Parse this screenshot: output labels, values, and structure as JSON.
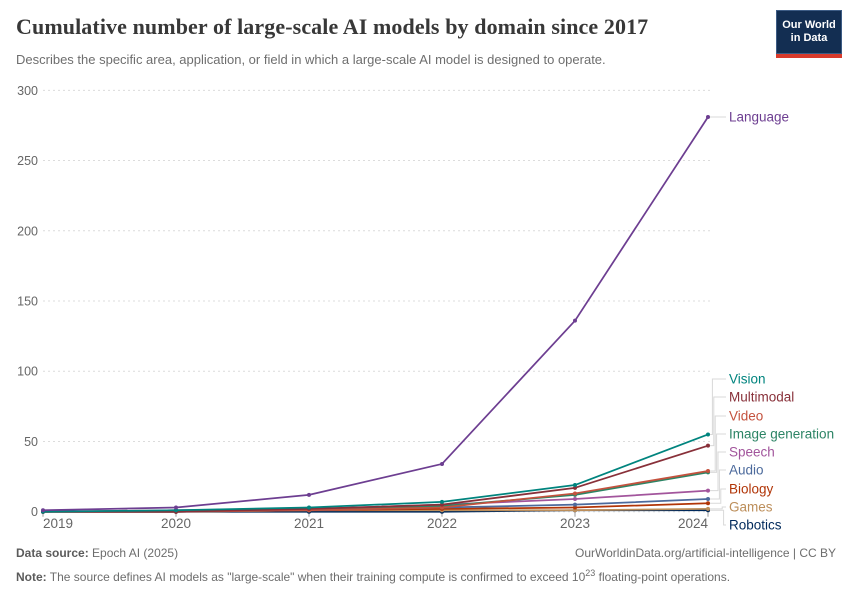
{
  "header": {
    "title": "Cumulative number of large-scale AI models by domain since 2017",
    "subtitle": "Describes the specific area, application, or field in which a large-scale AI model is designed to operate.",
    "logo": {
      "line1": "Our World",
      "line2": "in Data",
      "bg": "#132E52",
      "accent": "#D93A2B"
    }
  },
  "chart_data": {
    "type": "line",
    "x": [
      2019,
      2020,
      2021,
      2022,
      2023,
      2024
    ],
    "x_tick_labels": [
      "2019",
      "2020",
      "2021",
      "2022",
      "2023",
      "2024"
    ],
    "yticks": [
      0,
      50,
      100,
      150,
      200,
      250,
      300
    ],
    "ylim": [
      0,
      300
    ],
    "xlabel": "",
    "ylabel": "",
    "grid": "horizontal-dashed",
    "legend_position": "right-of-line-ends",
    "series": [
      {
        "name": "Language",
        "color": "#6D3E91",
        "values": [
          1,
          3,
          12,
          34,
          136,
          281
        ]
      },
      {
        "name": "Vision",
        "color": "#00847E",
        "values": [
          0,
          1,
          3,
          7,
          19,
          55
        ]
      },
      {
        "name": "Multimodal",
        "color": "#883039",
        "values": [
          0,
          0,
          2,
          5,
          17,
          47
        ]
      },
      {
        "name": "Video",
        "color": "#C4523E",
        "values": [
          0,
          0,
          1,
          3,
          13,
          29
        ]
      },
      {
        "name": "Image generation",
        "color": "#2C8465",
        "values": [
          0,
          0,
          1,
          4,
          12,
          28
        ]
      },
      {
        "name": "Speech",
        "color": "#A2559C",
        "values": [
          0,
          1,
          2,
          5,
          9,
          15
        ]
      },
      {
        "name": "Audio",
        "color": "#4C6A9C",
        "values": [
          0,
          0,
          1,
          3,
          5,
          9
        ]
      },
      {
        "name": "Biology",
        "color": "#B13507",
        "values": [
          0,
          0,
          1,
          2,
          3,
          6
        ]
      },
      {
        "name": "Games",
        "color": "#BC8E5A",
        "values": [
          0,
          1,
          1,
          1,
          1,
          2
        ]
      },
      {
        "name": "Robotics",
        "color": "#00295B",
        "values": [
          0,
          0,
          0,
          0,
          1,
          1
        ]
      }
    ]
  },
  "footer": {
    "source_label": "Data source:",
    "source_text": " Epoch AI (2025)",
    "rights": "OurWorldinData.org/artificial-intelligence | CC BY",
    "note_label": "Note:",
    "note_text_1": " The source defines AI models as \"large-scale\" when their training compute is confirmed to exceed 10",
    "note_sup": "23",
    "note_text_2": " floating-point operations."
  }
}
